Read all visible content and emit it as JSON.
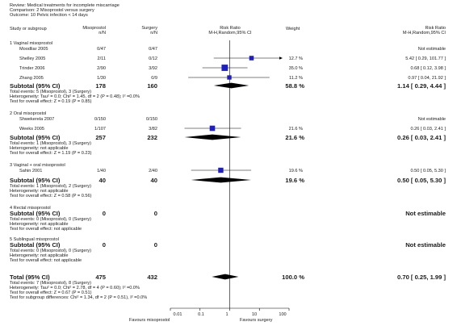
{
  "header": {
    "review": "Review:  Medical treatments for incomplete miscarriage",
    "comparison": "Comparison:  2 Misoprostol versus surgery",
    "outcome": "Outcome:  10 Pelvic infection < 14 days"
  },
  "columns": {
    "study": "Study or subgroup",
    "exp": [
      "Misoprostol",
      "n/N"
    ],
    "ctrl": [
      "Surgery",
      "n/N"
    ],
    "rr": [
      "Risk Ratio",
      "M-H,Random,95% CI"
    ],
    "weight": "Weight",
    "rr2": [
      "Risk Ratio",
      "M-H,Random,95% CI"
    ]
  },
  "groups": [
    {
      "title": "1 Vaginal misoprostol",
      "studies": [
        {
          "name": "Moodliar 2005",
          "exp": "0/47",
          "ctrl": "0/47",
          "weight": "",
          "est": "Not estimable"
        },
        {
          "name": "Shelley 2005",
          "exp": "2/11",
          "ctrl": "0/12",
          "weight": "12.7 %",
          "est": "5.42 [ 0.29, 101.77 ]"
        },
        {
          "name": "Trinder 2006",
          "exp": "2/90",
          "ctrl": "3/92",
          "weight": "35.0 %",
          "est": "0.68 [ 0.12, 3.98 ]"
        },
        {
          "name": "Zhang 2005",
          "exp": "1/30",
          "ctrl": "0/9",
          "weight": "11.2 %",
          "est": "0.97 [ 0.04, 21.92 ]"
        }
      ],
      "subtotal": {
        "label": "Subtotal (95% CI)",
        "exp": "178",
        "ctrl": "160",
        "weight": "58.8 %",
        "est": "1.14 [ 0.29, 4.44 ]"
      },
      "notes": [
        "Total events: 5 (Misoprostol), 3 (Surgery)",
        "Heterogeneity: Tau² = 0.0; Chi² = 1.45, df = 2 (P = 0.48); I² =0.0%",
        "Test for overall effect: Z = 0.19 (P = 0.85)"
      ]
    },
    {
      "title": "2 Oral misoprostol",
      "studies": [
        {
          "name": "Shwekerela 2007",
          "exp": "0/150",
          "ctrl": "0/150",
          "weight": "",
          "est": "Not estimable"
        },
        {
          "name": "Weeks 2005",
          "exp": "1/107",
          "ctrl": "3/82",
          "weight": "21.6 %",
          "est": "0.26 [ 0.03, 2.41 ]"
        }
      ],
      "subtotal": {
        "label": "Subtotal (95% CI)",
        "exp": "257",
        "ctrl": "232",
        "weight": "21.6 %",
        "est": "0.26 [ 0.03, 2.41 ]"
      },
      "notes": [
        "Total events: 1 (Misoprostol), 3 (Surgery)",
        "Heterogeneity: not applicable",
        "Test for overall effect: Z = 1.19 (P = 0.23)"
      ]
    },
    {
      "title": "3 Vaginal + oral misoprostol",
      "studies": [
        {
          "name": "Sahin 2001",
          "exp": "1/40",
          "ctrl": "2/40",
          "weight": "19.6 %",
          "est": "0.50 [ 0.05, 5.30 ]"
        }
      ],
      "subtotal": {
        "label": "Subtotal (95% CI)",
        "exp": "40",
        "ctrl": "40",
        "weight": "19.6 %",
        "est": "0.50 [ 0.05, 5.30 ]"
      },
      "notes": [
        "Total events: 1 (Misoprostol), 2 (Surgery)",
        "Heterogeneity: not applicable",
        "Test for overall effect: Z = 0.58 (P = 0.56)"
      ]
    },
    {
      "title": "4 Rectal misoprostol",
      "studies": [],
      "subtotal": {
        "label": "Subtotal (95% CI)",
        "exp": "0",
        "ctrl": "0",
        "weight": "",
        "est": "Not estimable"
      },
      "notes": [
        "Total events: 0 (Misoprostol), 0 (Surgery)",
        "Heterogeneity: not applicable",
        "Test for overall effect: not applicable"
      ]
    },
    {
      "title": "5 Sublingual misoprostol",
      "studies": [],
      "subtotal": {
        "label": "Subtotal (95% CI)",
        "exp": "0",
        "ctrl": "0",
        "weight": "",
        "est": "Not estimable"
      },
      "notes": [
        "Total events: 0 (Misoprostol), 0 (Surgery)",
        "Heterogeneity: not applicable",
        "Test for overall effect: not applicable"
      ]
    }
  ],
  "total": {
    "label": "Total (95% CI)",
    "exp": "475",
    "ctrl": "432",
    "weight": "100.0 %",
    "est": "0.70 [ 0.25, 1.99 ]",
    "notes": [
      "Total events: 7 (Misoprostol), 8 (Surgery)",
      "Heterogeneity: Tau² = 0.0; Chi² = 2.78, df = 4 (P = 0.60); I² =0.0%",
      "Test for overall effect: Z = 0.67 (P = 0.51)",
      "Test for subgroup differences: Chi² = 1.34, df = 2 (P = 0.51), I² =0.0%"
    ]
  },
  "axis": {
    "ticks": [
      "0.01",
      "0.1",
      "1",
      "10",
      "100"
    ],
    "left_label": "Favours misoprostol",
    "right_label": "Favours surgery"
  },
  "chart_data": {
    "type": "forest",
    "scale": "log",
    "xlim": [
      0.01,
      100
    ],
    "null_line": 1,
    "colors": {
      "study_box": "#1f1fbf",
      "diamond": "#000000",
      "line": "#000000"
    },
    "studies": [
      {
        "name": "Shelley 2005",
        "rr": 5.42,
        "lo": 0.29,
        "hi": 101.77,
        "weight": 12.7,
        "arrow_right": true
      },
      {
        "name": "Trinder 2006",
        "rr": 0.68,
        "lo": 0.12,
        "hi": 3.98,
        "weight": 35.0
      },
      {
        "name": "Zhang 2005",
        "rr": 0.97,
        "lo": 0.04,
        "hi": 21.92,
        "weight": 11.2
      },
      {
        "name": "Weeks 2005",
        "rr": 0.26,
        "lo": 0.03,
        "hi": 2.41,
        "weight": 21.6
      },
      {
        "name": "Sahin 2001",
        "rr": 0.5,
        "lo": 0.05,
        "hi": 5.3,
        "weight": 19.6
      }
    ],
    "subtotals": [
      {
        "name": "Subtotal 1",
        "rr": 1.14,
        "lo": 0.29,
        "hi": 4.44
      },
      {
        "name": "Subtotal 2",
        "rr": 0.26,
        "lo": 0.03,
        "hi": 2.41
      },
      {
        "name": "Subtotal 3",
        "rr": 0.5,
        "lo": 0.05,
        "hi": 5.3
      }
    ],
    "total": {
      "name": "Total",
      "rr": 0.7,
      "lo": 0.25,
      "hi": 1.99
    }
  }
}
